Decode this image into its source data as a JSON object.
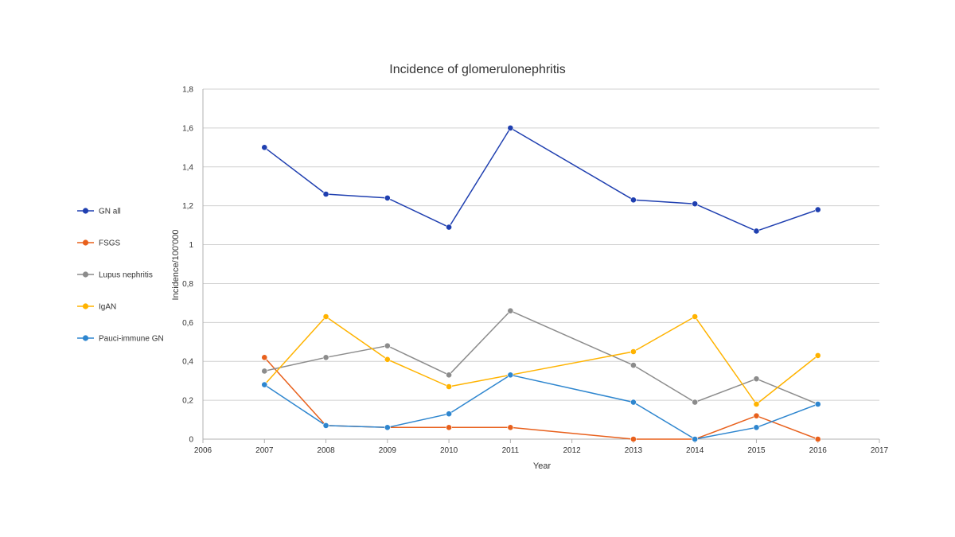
{
  "chart_data": {
    "type": "line",
    "title": "Incidence of glomerulonephritis",
    "xlabel": "Year",
    "ylabel": "Incidence/100'000",
    "xlim": [
      2006,
      2017
    ],
    "ylim": [
      0,
      1.8
    ],
    "x_ticks": [
      "2006",
      "2007",
      "2008",
      "2009",
      "2010",
      "2011",
      "2012",
      "2013",
      "2014",
      "2015",
      "2016",
      "2017"
    ],
    "y_ticks": [
      "0",
      "0,2",
      "0,4",
      "0,6",
      "0,8",
      "1",
      "1,2",
      "1,4",
      "1,6",
      "1,8"
    ],
    "grid": true,
    "legend_position": "left",
    "series": [
      {
        "name": "GN all",
        "color": "#1f3fb0",
        "x": [
          2007,
          2008,
          2009,
          2010,
          2011,
          2013,
          2014,
          2015,
          2016
        ],
        "y": [
          1.5,
          1.26,
          1.24,
          1.09,
          1.6,
          1.23,
          1.21,
          1.07,
          1.18
        ]
      },
      {
        "name": "FSGS",
        "color": "#e8601c",
        "x": [
          2007,
          2008,
          2009,
          2010,
          2011,
          2013,
          2014,
          2015,
          2016
        ],
        "y": [
          0.42,
          0.07,
          0.06,
          0.06,
          0.06,
          0.0,
          0.0,
          0.12,
          0.0
        ]
      },
      {
        "name": "Lupus nephritis",
        "color": "#8c8c8c",
        "x": [
          2007,
          2008,
          2009,
          2010,
          2011,
          2013,
          2014,
          2015,
          2016
        ],
        "y": [
          0.35,
          0.42,
          0.48,
          0.33,
          0.66,
          0.38,
          0.19,
          0.31,
          0.18
        ]
      },
      {
        "name": "IgAN",
        "color": "#ffb300",
        "x": [
          2007,
          2008,
          2009,
          2010,
          2011,
          2013,
          2014,
          2015,
          2016
        ],
        "y": [
          0.28,
          0.63,
          0.41,
          0.27,
          0.33,
          0.45,
          0.63,
          0.18,
          0.43
        ]
      },
      {
        "name": "Pauci-immune GN",
        "color": "#2e86cf",
        "x": [
          2007,
          2008,
          2009,
          2010,
          2011,
          2013,
          2014,
          2015,
          2016
        ],
        "y": [
          0.28,
          0.07,
          0.06,
          0.13,
          0.33,
          0.19,
          0.0,
          0.06,
          0.18
        ]
      }
    ]
  }
}
